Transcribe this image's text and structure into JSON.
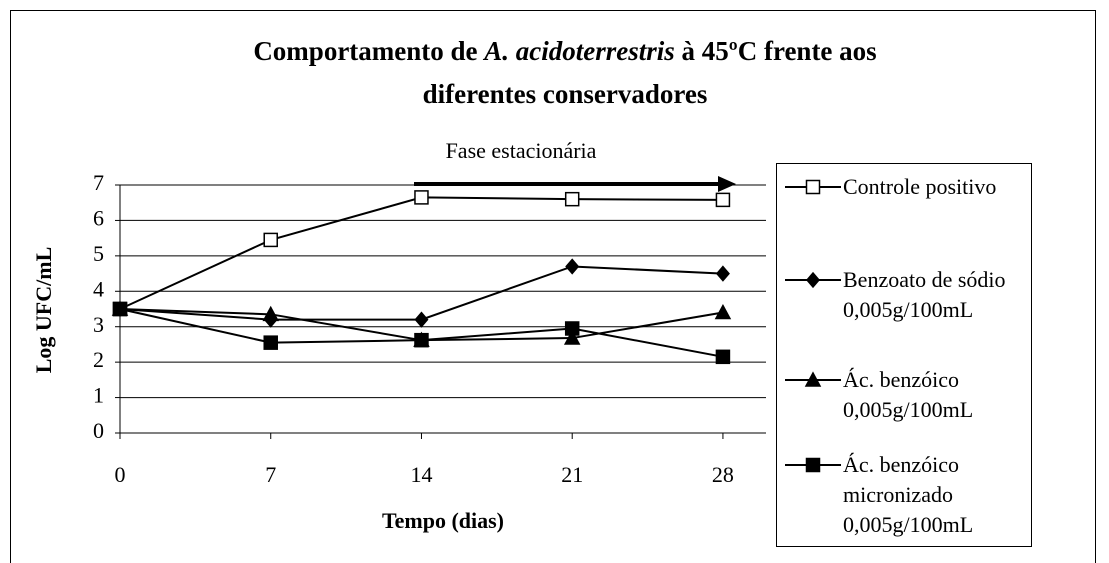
{
  "chart_data": {
    "type": "line",
    "title": [
      "Comportamento de",
      "A. acidoterrestris",
      "à 45ºC frente aos",
      "diferentes conservadores"
    ],
    "annotation": "Fase estacionária",
    "x_label": "Tempo (dias)",
    "y_label": "Log UFC/mL",
    "x": [
      0,
      7,
      14,
      21,
      28
    ],
    "xlim": [
      0,
      30
    ],
    "xticks": [
      0,
      7,
      14,
      21,
      28
    ],
    "ylim": [
      0,
      7
    ],
    "yticks": [
      0,
      1,
      2,
      3,
      4,
      5,
      6,
      7
    ],
    "grid": true,
    "legend": "right",
    "series": [
      {
        "name": "Controle positivo",
        "color": "#000000",
        "marker": "square-open",
        "values": [
          3.5,
          5.45,
          6.65,
          6.6,
          6.58
        ]
      },
      {
        "name": "Benzoato de sódio 0,005g/100mL",
        "color": "#000000",
        "marker": "diamond",
        "values": [
          3.5,
          3.2,
          3.2,
          4.7,
          4.5
        ]
      },
      {
        "name": "Ác. benzóico 0,005g/100mL",
        "color": "#000000",
        "marker": "triangle",
        "values": [
          3.5,
          3.35,
          2.62,
          2.68,
          3.4
        ]
      },
      {
        "name": "Ác. benzóico micronizado 0,005g/100mL",
        "color": "#000000",
        "marker": "square",
        "values": [
          3.5,
          2.55,
          2.62,
          2.95,
          2.15
        ]
      }
    ]
  }
}
